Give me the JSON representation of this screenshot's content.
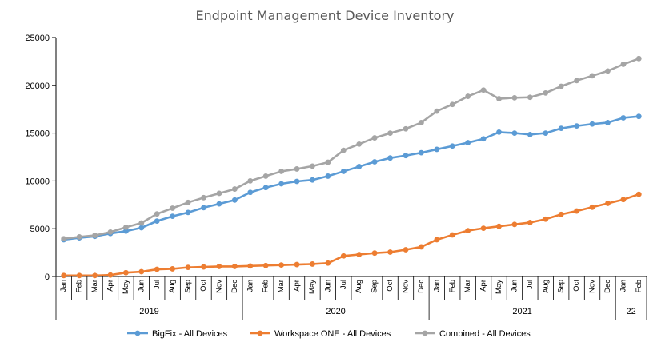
{
  "chart_data": {
    "type": "line",
    "title": "Endpoint Management Device Inventory",
    "xlabel": "",
    "ylabel": "",
    "ylim": [
      0,
      25000
    ],
    "yticks": [
      0,
      5000,
      10000,
      15000,
      20000,
      25000
    ],
    "grid": false,
    "legend_position": "bottom",
    "x": [
      "Jan",
      "Feb",
      "Mar",
      "Apr",
      "May",
      "Jun",
      "Jul",
      "Aug",
      "Sep",
      "Oct",
      "Nov",
      "Dec",
      "Jan",
      "Feb",
      "Mar",
      "Apr",
      "May",
      "Jun",
      "Jul",
      "Aug",
      "Sep",
      "Oct",
      "Nov",
      "Dec",
      "Jan",
      "Feb",
      "Mar",
      "Apr",
      "May",
      "Jun",
      "Jul",
      "Aug",
      "Sep",
      "Oct",
      "Nov",
      "Dec",
      "Jan",
      "Feb"
    ],
    "groups": [
      {
        "label": "2019",
        "count": 12
      },
      {
        "label": "2020",
        "count": 12
      },
      {
        "label": "2021",
        "count": 12
      },
      {
        "label": "22",
        "count": 2
      }
    ],
    "series": [
      {
        "name": "BigFix - All Devices",
        "color": "#5B9BD5",
        "values": [
          3850,
          4050,
          4200,
          4500,
          4750,
          5100,
          5800,
          6300,
          6700,
          7200,
          7600,
          8000,
          8800,
          9300,
          9700,
          9950,
          10100,
          10500,
          11000,
          11500,
          12000,
          12400,
          12650,
          12950,
          13300,
          13650,
          14000,
          14400,
          15100,
          15000,
          14850,
          15000,
          15500,
          15750,
          15950,
          16100,
          16600,
          16750
        ]
      },
      {
        "name": "Workspace ONE - All Devices",
        "color": "#ED7D31",
        "values": [
          100,
          100,
          100,
          150,
          400,
          500,
          750,
          800,
          950,
          1000,
          1050,
          1050,
          1100,
          1150,
          1200,
          1250,
          1300,
          1400,
          2150,
          2300,
          2450,
          2550,
          2800,
          3100,
          3850,
          4350,
          4800,
          5050,
          5250,
          5450,
          5650,
          6000,
          6500,
          6850,
          7250,
          7650,
          8050,
          8600
        ]
      },
      {
        "name": "Combined - All Devices",
        "color": "#A5A5A5",
        "values": [
          3950,
          4150,
          4300,
          4650,
          5150,
          5600,
          6550,
          7150,
          7750,
          8250,
          8700,
          9150,
          10000,
          10500,
          11000,
          11250,
          11550,
          11950,
          13200,
          13850,
          14500,
          15000,
          15450,
          16100,
          17300,
          18000,
          18850,
          19500,
          18600,
          18700,
          18750,
          19200,
          19900,
          20500,
          21000,
          21500,
          22200,
          22800
        ]
      }
    ]
  }
}
